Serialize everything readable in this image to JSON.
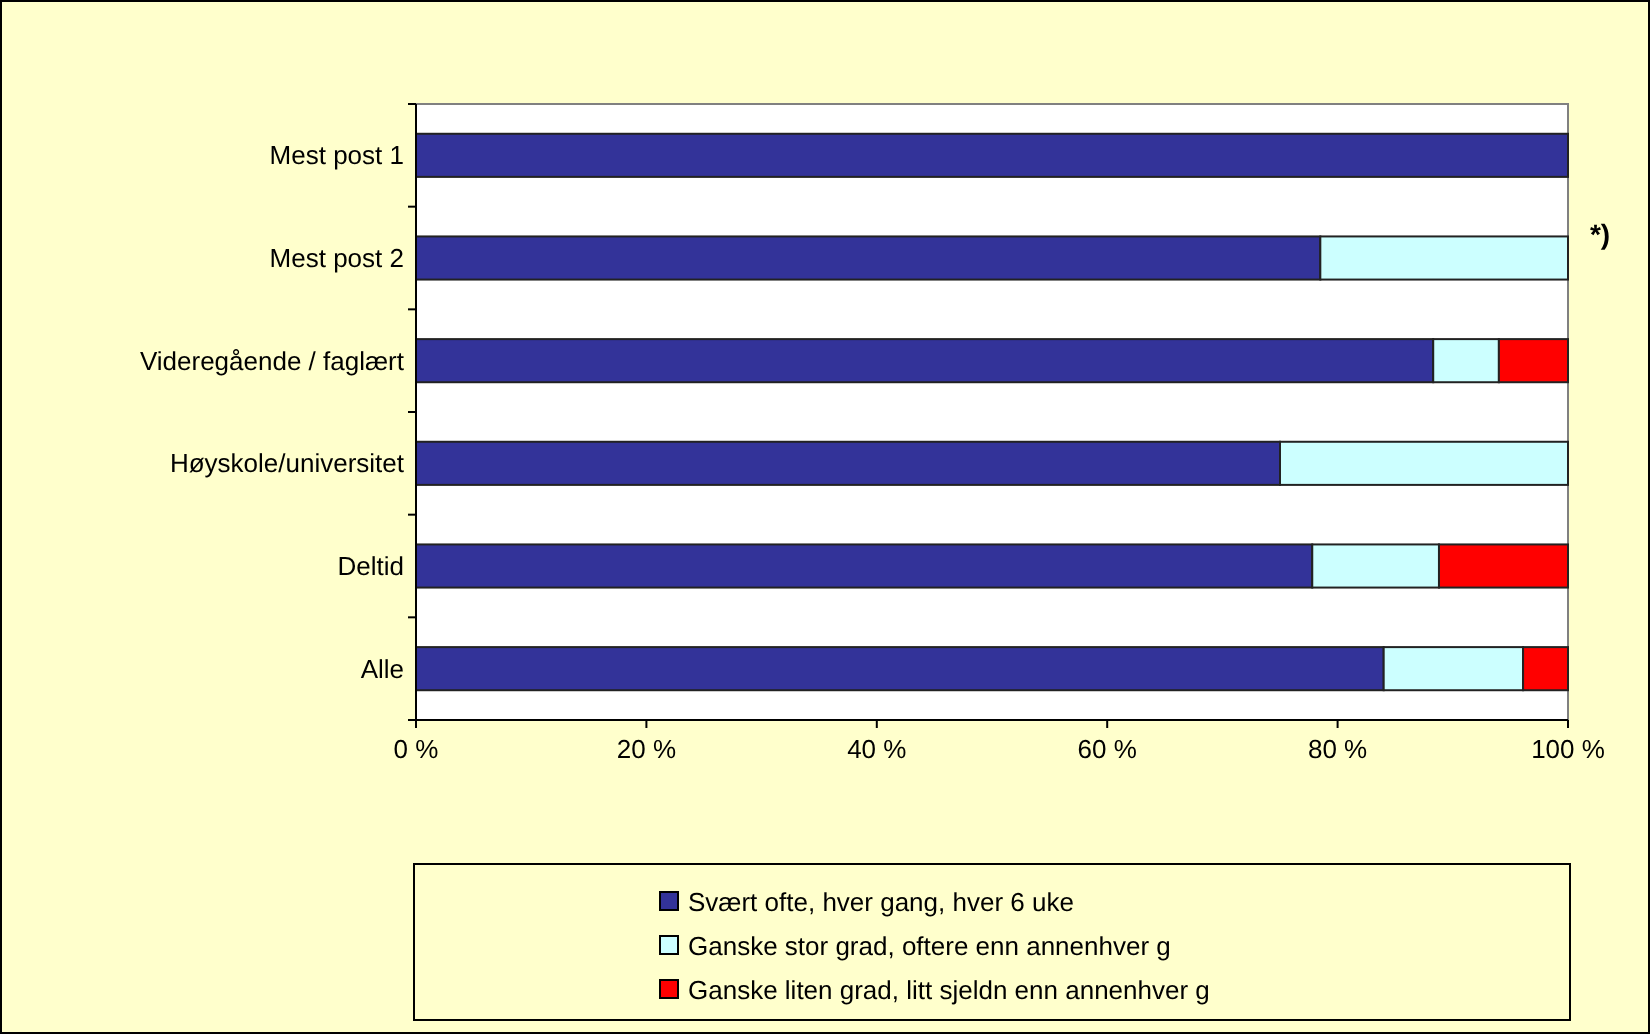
{
  "chart_data": {
    "type": "bar",
    "orientation": "horizontal",
    "stacked": true,
    "categories": [
      "Mest post 1",
      "Mest post 2",
      "Videregående / faglært",
      "Høyskole/universitet",
      "Deltid",
      "Alle"
    ],
    "series": [
      {
        "name": "Svært ofte, hver gang, hver 6 uke",
        "color": "#333399",
        "values": [
          100,
          78.5,
          88.3,
          75,
          77.8,
          84
        ]
      },
      {
        "name": "Ganske stor grad, oftere enn annenhver g",
        "color": "#ccffff",
        "values": [
          0,
          21.5,
          5.7,
          25,
          11,
          12.1
        ]
      },
      {
        "name": "Ganske liten grad, litt sjeldn enn annenhver g",
        "color": "#ff0000",
        "values": [
          0,
          0,
          6,
          0,
          11.2,
          3.9
        ]
      }
    ],
    "xlim": [
      0,
      100
    ],
    "xticks": [
      {
        "value": 0,
        "label": "0 %"
      },
      {
        "value": 20,
        "label": "20 %"
      },
      {
        "value": 40,
        "label": "40 %"
      },
      {
        "value": 60,
        "label": "60 %"
      },
      {
        "value": 80,
        "label": "80 %"
      },
      {
        "value": 100,
        "label": "100 %"
      }
    ],
    "annotations": [
      "*)"
    ],
    "legend": "bottom"
  }
}
